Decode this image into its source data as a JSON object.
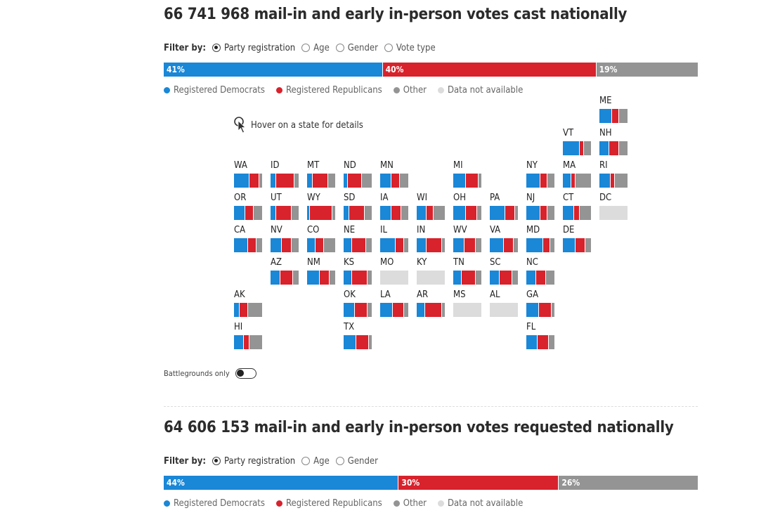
{
  "colors": {
    "dem": "#1a87d7",
    "rep": "#d8222c",
    "other": "#949494",
    "na": "#dcdcdc"
  },
  "sections": [
    {
      "title": "66 741 968 mail-in and early in-person votes cast nationally",
      "filter_label": "Filter by:",
      "filters": [
        {
          "label": "Party registration",
          "checked": true
        },
        {
          "label": "Age",
          "checked": false
        },
        {
          "label": "Gender",
          "checked": false
        },
        {
          "label": "Vote type",
          "checked": false
        }
      ],
      "legend": [
        "Registered Democrats",
        "Registered Republicans",
        "Other",
        "Data not available"
      ],
      "national": [
        {
          "key": "dem",
          "value": 41,
          "label": "41%"
        },
        {
          "key": "rep",
          "value": 40,
          "label": "40%"
        },
        {
          "key": "other",
          "value": 19,
          "label": "19%"
        }
      ]
    },
    {
      "title": "64 606 153 mail-in and early in-person votes requested nationally",
      "filter_label": "Filter by:",
      "filters": [
        {
          "label": "Party registration",
          "checked": true
        },
        {
          "label": "Age",
          "checked": false
        },
        {
          "label": "Gender",
          "checked": false
        }
      ],
      "legend": [
        "Registered Democrats",
        "Registered Republicans",
        "Other",
        "Data not available"
      ],
      "national": [
        {
          "key": "dem",
          "value": 44,
          "label": "44%"
        },
        {
          "key": "rep",
          "value": 30,
          "label": "30%"
        },
        {
          "key": "other",
          "value": 26,
          "label": "26%"
        }
      ]
    }
  ],
  "hover_hint": "Hover on a state for details",
  "toggle_label": "Battlegrounds only",
  "chart_data": {
    "type": "tile-map-stacked-bar",
    "grid": {
      "col_x0": 333,
      "col_dx": 52,
      "row_y0": 137,
      "row_dy": 46
    },
    "states": [
      {
        "abbr": "ME",
        "col": 10,
        "row": 0,
        "dem": 45,
        "rep": 25,
        "other": 30
      },
      {
        "abbr": "VT",
        "col": 9,
        "row": 1,
        "dem": 60,
        "rep": 15,
        "other": 25
      },
      {
        "abbr": "NH",
        "col": 10,
        "row": 1,
        "dem": 35,
        "rep": 35,
        "other": 30
      },
      {
        "abbr": "WA",
        "col": 0,
        "row": 2,
        "dem": 55,
        "rep": 35,
        "other": 10
      },
      {
        "abbr": "ID",
        "col": 1,
        "row": 2,
        "dem": 20,
        "rep": 65,
        "other": 15
      },
      {
        "abbr": "MT",
        "col": 2,
        "row": 2,
        "dem": 20,
        "rep": 55,
        "other": 25
      },
      {
        "abbr": "ND",
        "col": 3,
        "row": 2,
        "dem": 15,
        "rep": 50,
        "other": 35
      },
      {
        "abbr": "MN",
        "col": 4,
        "row": 2,
        "dem": 40,
        "rep": 30,
        "other": 30
      },
      {
        "abbr": "MI",
        "col": 6,
        "row": 2,
        "dem": 45,
        "rep": 45,
        "other": 10
      },
      {
        "abbr": "NY",
        "col": 8,
        "row": 2,
        "dem": 50,
        "rep": 25,
        "other": 25
      },
      {
        "abbr": "MA",
        "col": 9,
        "row": 2,
        "dem": 30,
        "rep": 15,
        "other": 55
      },
      {
        "abbr": "RI",
        "col": 10,
        "row": 2,
        "dem": 40,
        "rep": 15,
        "other": 45
      },
      {
        "abbr": "OR",
        "col": 0,
        "row": 3,
        "dem": 40,
        "rep": 30,
        "other": 30
      },
      {
        "abbr": "UT",
        "col": 1,
        "row": 3,
        "dem": 20,
        "rep": 55,
        "other": 25
      },
      {
        "abbr": "WY",
        "col": 2,
        "row": 3,
        "dem": 10,
        "rep": 80,
        "other": 10
      },
      {
        "abbr": "SD",
        "col": 3,
        "row": 3,
        "dem": 20,
        "rep": 55,
        "other": 25
      },
      {
        "abbr": "IA",
        "col": 4,
        "row": 3,
        "dem": 40,
        "rep": 35,
        "other": 25
      },
      {
        "abbr": "WI",
        "col": 5,
        "row": 3,
        "dem": 35,
        "rep": 25,
        "other": 40
      },
      {
        "abbr": "OH",
        "col": 6,
        "row": 3,
        "dem": 45,
        "rep": 40,
        "other": 15
      },
      {
        "abbr": "PA",
        "col": 7,
        "row": 3,
        "dem": 55,
        "rep": 35,
        "other": 10
      },
      {
        "abbr": "NJ",
        "col": 8,
        "row": 3,
        "dem": 50,
        "rep": 25,
        "other": 25
      },
      {
        "abbr": "CT",
        "col": 9,
        "row": 3,
        "dem": 40,
        "rep": 20,
        "other": 40
      },
      {
        "abbr": "DC",
        "col": 10,
        "row": 3,
        "na": true
      },
      {
        "abbr": "CA",
        "col": 0,
        "row": 4,
        "dem": 50,
        "rep": 30,
        "other": 20
      },
      {
        "abbr": "NV",
        "col": 1,
        "row": 4,
        "dem": 40,
        "rep": 35,
        "other": 25
      },
      {
        "abbr": "CO",
        "col": 2,
        "row": 4,
        "dem": 30,
        "rep": 30,
        "other": 40
      },
      {
        "abbr": "NE",
        "col": 3,
        "row": 4,
        "dem": 30,
        "rep": 50,
        "other": 20
      },
      {
        "abbr": "IL",
        "col": 4,
        "row": 4,
        "dem": 55,
        "rep": 30,
        "other": 15
      },
      {
        "abbr": "IN",
        "col": 5,
        "row": 4,
        "dem": 35,
        "rep": 55,
        "other": 10
      },
      {
        "abbr": "WV",
        "col": 6,
        "row": 4,
        "dem": 40,
        "rep": 40,
        "other": 20
      },
      {
        "abbr": "VA",
        "col": 7,
        "row": 4,
        "dem": 50,
        "rep": 35,
        "other": 15
      },
      {
        "abbr": "MD",
        "col": 8,
        "row": 4,
        "dem": 60,
        "rep": 25,
        "other": 15
      },
      {
        "abbr": "DE",
        "col": 9,
        "row": 4,
        "dem": 45,
        "rep": 35,
        "other": 20
      },
      {
        "abbr": "AZ",
        "col": 1,
        "row": 5,
        "dem": 35,
        "rep": 45,
        "other": 20
      },
      {
        "abbr": "NM",
        "col": 2,
        "row": 5,
        "dem": 45,
        "rep": 35,
        "other": 20
      },
      {
        "abbr": "KS",
        "col": 3,
        "row": 5,
        "dem": 30,
        "rep": 55,
        "other": 15
      },
      {
        "abbr": "MO",
        "col": 4,
        "row": 5,
        "na": true
      },
      {
        "abbr": "KY",
        "col": 5,
        "row": 5,
        "na": true
      },
      {
        "abbr": "TN",
        "col": 6,
        "row": 5,
        "dem": 30,
        "rep": 50,
        "other": 20
      },
      {
        "abbr": "SC",
        "col": 7,
        "row": 5,
        "dem": 35,
        "rep": 45,
        "other": 20
      },
      {
        "abbr": "NC",
        "col": 8,
        "row": 5,
        "dem": 35,
        "rep": 35,
        "other": 30
      },
      {
        "abbr": "AK",
        "col": 0,
        "row": 6,
        "dem": 20,
        "rep": 30,
        "other": 50
      },
      {
        "abbr": "OK",
        "col": 3,
        "row": 6,
        "dem": 40,
        "rep": 45,
        "other": 15
      },
      {
        "abbr": "LA",
        "col": 4,
        "row": 6,
        "dem": 45,
        "rep": 40,
        "other": 15
      },
      {
        "abbr": "AR",
        "col": 5,
        "row": 6,
        "dem": 30,
        "rep": 60,
        "other": 10
      },
      {
        "abbr": "MS",
        "col": 6,
        "row": 6,
        "na": true
      },
      {
        "abbr": "AL",
        "col": 7,
        "row": 6,
        "na": true
      },
      {
        "abbr": "GA",
        "col": 8,
        "row": 6,
        "dem": 45,
        "rep": 45,
        "other": 10
      },
      {
        "abbr": "HI",
        "col": 0,
        "row": 7,
        "dem": 35,
        "rep": 20,
        "other": 45
      },
      {
        "abbr": "TX",
        "col": 3,
        "row": 7,
        "dem": 45,
        "rep": 45,
        "other": 10
      },
      {
        "abbr": "FL",
        "col": 8,
        "row": 7,
        "dem": 40,
        "rep": 40,
        "other": 20
      }
    ]
  }
}
